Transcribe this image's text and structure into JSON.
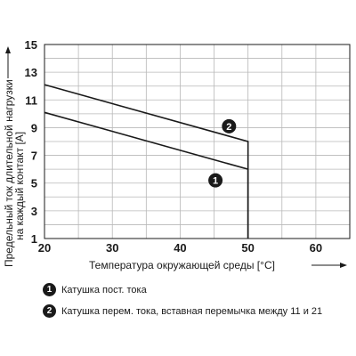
{
  "chart_data": {
    "type": "line",
    "xlabel": "Температура окружающей среды [°C]",
    "ylabel_line1": "Предельный ток длительной нагрузки",
    "ylabel_line2": "на каждый контакт [A]",
    "xlim": [
      20,
      65
    ],
    "ylim": [
      1,
      15
    ],
    "x_ticks": [
      20,
      30,
      40,
      50,
      60
    ],
    "y_ticks": [
      1,
      3,
      5,
      7,
      9,
      11,
      13,
      15
    ],
    "grid": true,
    "series": [
      {
        "marker": "1",
        "x": [
          20,
          50
        ],
        "y": [
          10.1,
          6.0
        ],
        "drop_to": 1
      },
      {
        "marker": "2",
        "x": [
          20,
          50
        ],
        "y": [
          12.1,
          8.0
        ],
        "drop_to": 1
      }
    ]
  },
  "legend": [
    {
      "marker": "1",
      "label": "Катушка пост. тока"
    },
    {
      "marker": "2",
      "label": "Катушка перем. тока, вставная перемычка между 11 и 21"
    }
  ]
}
